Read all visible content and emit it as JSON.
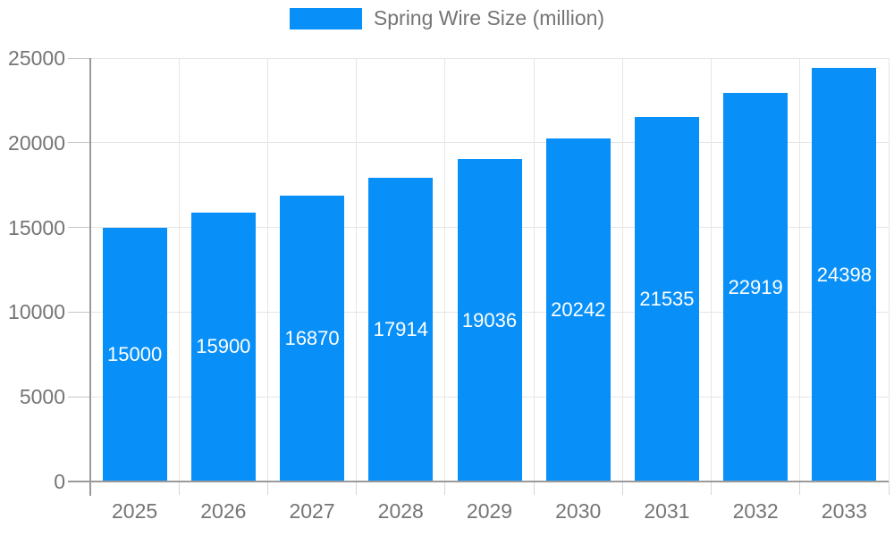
{
  "legend": {
    "label": "Spring Wire Size (million)"
  },
  "chart_data": {
    "type": "bar",
    "title": "",
    "series_name": "Spring Wire Size (million)",
    "categories": [
      "2025",
      "2026",
      "2027",
      "2028",
      "2029",
      "2030",
      "2031",
      "2032",
      "2033"
    ],
    "values": [
      15000,
      15900,
      16870,
      17914,
      19036,
      20242,
      21535,
      22919,
      24398
    ],
    "xlabel": "",
    "ylabel": "",
    "ylim": [
      0,
      25000
    ],
    "yticks": [
      0,
      5000,
      10000,
      15000,
      20000,
      25000
    ],
    "grid": true,
    "legend_position": "top-center",
    "bar_color": "#0890f8",
    "label_color": "#ffffff",
    "axis_text_color": "#757575",
    "grid_color": "#e6e6e6",
    "axis_line_color": "#9a9a9a",
    "tick_color": "#c6c6c6"
  }
}
